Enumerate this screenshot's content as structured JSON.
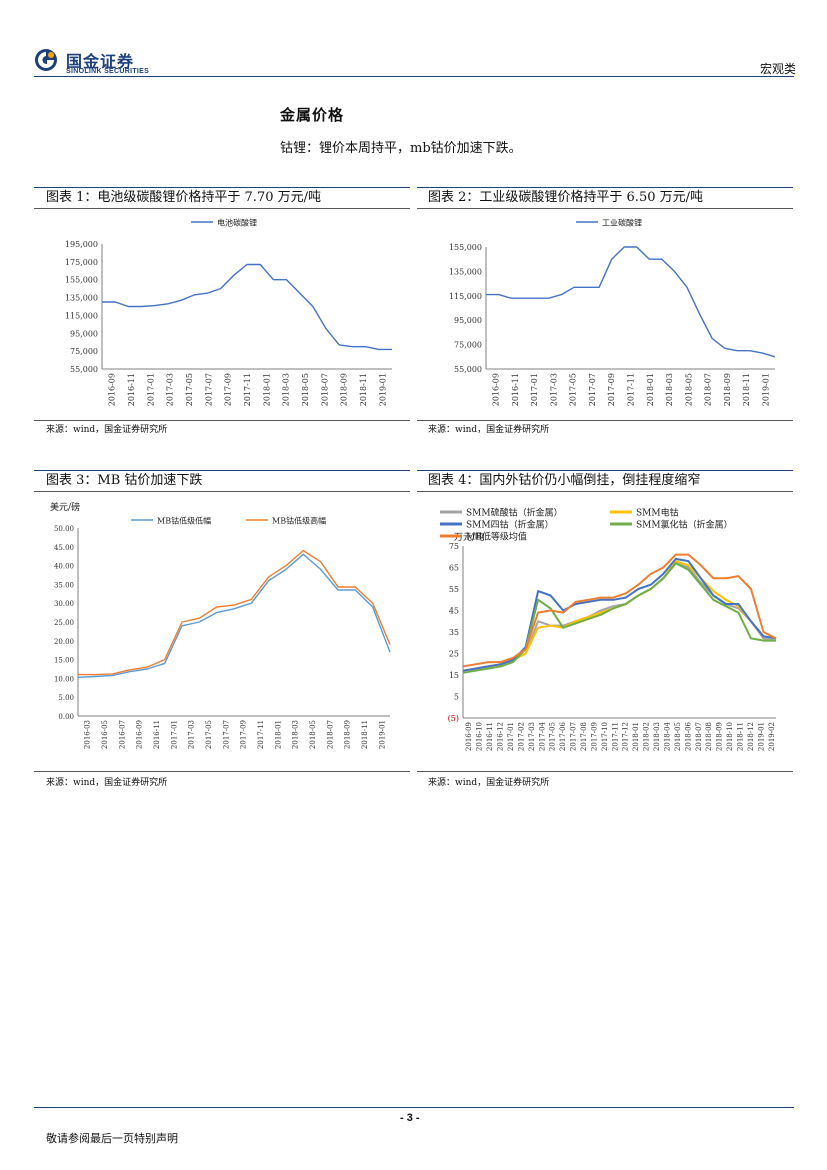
{
  "header": {
    "logo_cn": "国金证券",
    "logo_en": "SINOLINK SECURITIES",
    "category": "宏观类",
    "accent_color": "#1d3f7a"
  },
  "section": {
    "title": "金属价格",
    "text": "钴锂：锂价本周持平，mb钴价加速下跌。"
  },
  "figures": [
    {
      "title": "图表 1：电池级碳酸锂价格持平于 7.70 万元/吨",
      "source": "来源：wind，国金证券研究所"
    },
    {
      "title": "图表 2：工业级碳酸锂价格持平于 6.50 万元/吨",
      "source": "来源：wind，国金证券研究所"
    },
    {
      "title": "图表 3：MB 钴价加速下跌",
      "source": "来源：wind，国金证券研究所"
    },
    {
      "title": "图表 4：国内外钴价仍小幅倒挂，倒挂程度缩窄",
      "source": "来源：wind，国金证券研究所"
    }
  ],
  "chart_data": [
    {
      "type": "line",
      "ylim": [
        55000,
        195000
      ],
      "yticks": [
        "195,000",
        "175,000",
        "155,000",
        "135,000",
        "115,000",
        "95,000",
        "75,000",
        "55,000"
      ],
      "xticks": [
        "2016-09",
        "2016-11",
        "2017-01",
        "2017-03",
        "2017-05",
        "2017-07",
        "2017-09",
        "2017-11",
        "2018-01",
        "2018-03",
        "2018-05",
        "2018-07",
        "2018-09",
        "2018-11",
        "2019-01"
      ],
      "series": [
        {
          "name": "电池碳酸锂",
          "color": "#4472c4",
          "values": [
            130000,
            130000,
            125000,
            125000,
            126000,
            128000,
            132000,
            138000,
            140000,
            145000,
            160000,
            172000,
            172000,
            155000,
            155000,
            140000,
            125000,
            100000,
            82000,
            80000,
            80000,
            77000,
            77000
          ]
        }
      ]
    },
    {
      "type": "line",
      "ylim": [
        55000,
        155000
      ],
      "yticks": [
        "155,000",
        "135,000",
        "115,000",
        "95,000",
        "75,000",
        "55,000"
      ],
      "xticks": [
        "2016-09",
        "2016-11",
        "2017-01",
        "2017-03",
        "2017-05",
        "2017-07",
        "2017-09",
        "2017-11",
        "2018-01",
        "2018-03",
        "2018-05",
        "2018-07",
        "2018-09",
        "2018-11",
        "2019-01"
      ],
      "series": [
        {
          "name": "工业碳酸锂",
          "color": "#4472c4",
          "values": [
            116000,
            116000,
            113000,
            113000,
            113000,
            113000,
            116000,
            122000,
            122000,
            122000,
            145000,
            155000,
            155000,
            145000,
            145000,
            135000,
            122000,
            100000,
            80000,
            72000,
            70000,
            70000,
            68000,
            65000
          ]
        }
      ]
    },
    {
      "type": "line",
      "ylabel": "美元/磅",
      "ylim": [
        0,
        50
      ],
      "yticks": [
        "50.00",
        "45.00",
        "40.00",
        "35.00",
        "30.00",
        "25.00",
        "20.00",
        "15.00",
        "10.00",
        "5.00",
        "0.00"
      ],
      "xticks": [
        "2016-03",
        "2016-05",
        "2016-07",
        "2016-09",
        "2016-11",
        "2017-01",
        "2017-03",
        "2017-05",
        "2017-07",
        "2017-09",
        "2017-11",
        "2018-01",
        "2018-03",
        "2018-05",
        "2018-07",
        "2018-09",
        "2018-11",
        "2019-01"
      ],
      "series": [
        {
          "name": "MB钴低级低幅",
          "color": "#5b9bd5",
          "values": [
            10.3,
            10.5,
            10.8,
            11.8,
            12.5,
            14,
            24,
            25,
            27.5,
            28.5,
            30,
            36,
            39,
            43,
            39,
            33.5,
            33.5,
            29,
            17
          ]
        },
        {
          "name": "MB钴低级高幅",
          "color": "#ed7d31",
          "values": [
            11,
            11,
            11.2,
            12.3,
            13,
            15,
            25,
            26,
            29,
            29.5,
            31,
            37,
            40,
            44,
            41,
            34.3,
            34.3,
            30,
            19
          ]
        }
      ]
    },
    {
      "type": "line",
      "ylabel": "万元/吨",
      "ylim": [
        -5,
        75
      ],
      "yticks": [
        "75",
        "65",
        "55",
        "45",
        "35",
        "25",
        "15",
        "5",
        "(5)"
      ],
      "xticks": [
        "2016-09",
        "2016-10",
        "2016-11",
        "2016-12",
        "2017-01",
        "2017-02",
        "2017-03",
        "2017-04",
        "2017-05",
        "2017-06",
        "2017-07",
        "2017-08",
        "2017-09",
        "2017-10",
        "2017-11",
        "2017-12",
        "2018-01",
        "2018-02",
        "2018-03",
        "2018-04",
        "2018-05",
        "2018-06",
        "2018-07",
        "2018-08",
        "2018-09",
        "2018-10",
        "2018-11",
        "2018-12",
        "2019-01",
        "2019-02"
      ],
      "series": [
        {
          "name": "SMM硫酸钴（折金属）",
          "color": "#a5a5a5",
          "values": [
            17,
            18,
            19,
            20,
            22,
            25,
            40,
            38,
            38,
            40,
            42,
            45,
            47,
            48,
            52,
            55,
            60,
            67,
            65,
            58,
            52,
            48,
            46,
            40,
            32,
            31
          ]
        },
        {
          "name": "SMM电钴",
          "color": "#ffc000",
          "values": [
            17,
            18,
            19,
            20,
            22,
            25,
            37,
            38,
            37,
            40,
            42,
            44,
            46,
            48,
            52,
            55,
            60,
            68,
            66,
            60,
            54,
            50,
            47,
            40,
            33,
            32
          ]
        },
        {
          "name": "SMM四钴（折金属）",
          "color": "#4472c4",
          "values": [
            17,
            18,
            19,
            20,
            22,
            28,
            54,
            52,
            45,
            48,
            49,
            50,
            50,
            51,
            55,
            57,
            62,
            69,
            68,
            60,
            52,
            48,
            48,
            40,
            33,
            32
          ]
        },
        {
          "name": "SMM氯化钴（折金属）",
          "color": "#70ad47",
          "values": [
            16,
            17,
            18,
            19,
            21,
            27,
            50,
            46,
            37,
            39,
            41,
            43,
            46,
            48,
            52,
            55,
            60,
            67,
            64,
            57,
            50,
            47,
            44,
            32,
            31,
            31
          ]
        },
        {
          "name": "MB低等级均值",
          "color": "#ed7d31",
          "values": [
            19,
            20,
            21,
            21,
            23,
            27,
            44,
            45,
            44,
            49,
            50,
            51,
            51,
            53,
            57,
            62,
            65,
            71,
            71,
            66,
            60,
            60,
            61,
            55,
            35,
            32
          ]
        }
      ]
    }
  ],
  "footer": {
    "page": "- 3 -",
    "text": "敬请参阅最后一页特别声明"
  }
}
